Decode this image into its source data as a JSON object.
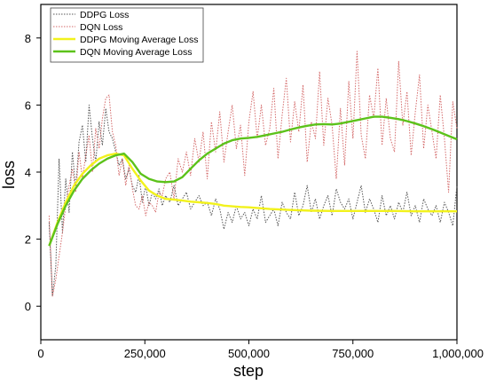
{
  "chart_data": {
    "type": "line",
    "title": "",
    "xlabel": "step",
    "ylabel": "loss",
    "xlim": [
      0,
      1000000
    ],
    "ylim": [
      -1,
      9
    ],
    "xticks": [
      0,
      250000,
      500000,
      750000,
      1000000
    ],
    "xtick_labels": [
      "0",
      "250,000",
      "500,000",
      "750,000",
      "1,000,000"
    ],
    "yticks": [
      0,
      2,
      4,
      6,
      8
    ],
    "ytick_labels": [
      "0",
      "2",
      "4",
      "6",
      "8"
    ],
    "grid": false,
    "legend_position": "top-left",
    "series": [
      {
        "name": "DDPG Loss",
        "color": "#555555",
        "style": "dotted",
        "x": [
          20000,
          28000,
          36000,
          44000,
          52000,
          60000,
          68000,
          76000,
          84000,
          92000,
          100000,
          108000,
          116000,
          124000,
          132000,
          140000,
          148000,
          156000,
          164000,
          172000,
          180000,
          188000,
          196000,
          204000,
          212000,
          220000,
          228000,
          236000,
          244000,
          252000,
          260000,
          268000,
          276000,
          284000,
          292000,
          300000,
          310000,
          320000,
          330000,
          340000,
          350000,
          360000,
          370000,
          380000,
          390000,
          400000,
          410000,
          420000,
          430000,
          440000,
          450000,
          460000,
          470000,
          480000,
          490000,
          500000,
          510000,
          520000,
          530000,
          540000,
          550000,
          560000,
          570000,
          580000,
          590000,
          600000,
          610000,
          620000,
          630000,
          640000,
          650000,
          660000,
          670000,
          680000,
          690000,
          700000,
          710000,
          720000,
          730000,
          740000,
          750000,
          760000,
          770000,
          780000,
          790000,
          800000,
          810000,
          820000,
          830000,
          840000,
          850000,
          860000,
          870000,
          880000,
          890000,
          900000,
          910000,
          920000,
          930000,
          940000,
          950000,
          960000,
          970000,
          980000,
          990000,
          1000000
        ],
        "y": [
          2.5,
          0.3,
          1.2,
          4.4,
          2.2,
          3.8,
          2.8,
          4.6,
          3.5,
          4.9,
          5.4,
          4.3,
          6.0,
          5.0,
          4.3,
          5.5,
          4.8,
          5.9,
          5.2,
          5.0,
          4.6,
          4.2,
          4.4,
          3.8,
          4.1,
          3.6,
          3.4,
          3.9,
          3.1,
          3.6,
          3.0,
          3.4,
          3.2,
          3.5,
          3.0,
          3.3,
          3.1,
          3.6,
          3.0,
          3.2,
          3.4,
          2.9,
          3.1,
          3.3,
          3.0,
          3.1,
          2.7,
          3.2,
          2.9,
          2.3,
          2.8,
          2.5,
          3.0,
          2.6,
          2.8,
          2.4,
          2.9,
          2.6,
          3.3,
          2.5,
          2.7,
          2.9,
          2.4,
          3.1,
          2.8,
          2.6,
          3.4,
          2.7,
          3.0,
          3.6,
          2.8,
          3.2,
          2.6,
          3.0,
          3.3,
          2.7,
          3.5,
          3.1,
          2.9,
          3.2,
          2.6,
          3.1,
          3.6,
          2.8,
          3.2,
          2.9,
          2.5,
          3.3,
          2.7,
          3.0,
          2.6,
          3.1,
          2.8,
          3.4,
          2.7,
          3.0,
          2.5,
          3.2,
          2.9,
          2.7,
          3.0,
          2.5,
          3.1,
          2.8,
          2.4,
          3.6
        ]
      },
      {
        "name": "DQN Loss",
        "color": "#d46a6a",
        "style": "dotted",
        "x": [
          20000,
          28000,
          36000,
          44000,
          52000,
          60000,
          68000,
          76000,
          84000,
          92000,
          100000,
          108000,
          116000,
          124000,
          132000,
          140000,
          148000,
          156000,
          164000,
          172000,
          180000,
          188000,
          196000,
          204000,
          212000,
          220000,
          228000,
          236000,
          244000,
          252000,
          260000,
          268000,
          276000,
          284000,
          292000,
          300000,
          310000,
          320000,
          330000,
          340000,
          350000,
          360000,
          370000,
          380000,
          390000,
          400000,
          410000,
          420000,
          430000,
          440000,
          450000,
          460000,
          470000,
          480000,
          490000,
          500000,
          510000,
          520000,
          530000,
          540000,
          550000,
          560000,
          570000,
          580000,
          590000,
          600000,
          610000,
          620000,
          630000,
          640000,
          650000,
          660000,
          670000,
          680000,
          690000,
          700000,
          710000,
          720000,
          730000,
          740000,
          750000,
          760000,
          770000,
          780000,
          790000,
          800000,
          810000,
          820000,
          830000,
          840000,
          850000,
          860000,
          870000,
          880000,
          890000,
          900000,
          910000,
          920000,
          930000,
          940000,
          950000,
          960000,
          970000,
          980000,
          990000,
          1000000
        ],
        "y": [
          2.7,
          0.3,
          0.8,
          1.5,
          2.2,
          3.0,
          3.6,
          4.1,
          3.4,
          4.6,
          3.8,
          4.5,
          5.1,
          4.0,
          5.3,
          4.7,
          5.6,
          6.2,
          6.3,
          5.2,
          4.8,
          3.9,
          4.4,
          3.6,
          4.2,
          3.5,
          3.0,
          2.9,
          3.3,
          2.7,
          3.1,
          3.0,
          2.8,
          3.4,
          3.3,
          3.8,
          4.0,
          3.2,
          4.4,
          4.0,
          4.6,
          3.9,
          5.0,
          4.3,
          5.2,
          3.8,
          5.5,
          4.6,
          5.8,
          4.3,
          5.2,
          6.0,
          4.7,
          5.4,
          3.9,
          5.5,
          6.4,
          5.0,
          6.0,
          4.8,
          5.3,
          6.5,
          4.4,
          5.7,
          6.8,
          4.9,
          6.1,
          5.2,
          6.6,
          4.3,
          5.5,
          5.0,
          7.0,
          4.8,
          6.2,
          5.4,
          3.8,
          5.9,
          4.2,
          6.7,
          5.0,
          7.6,
          5.1,
          4.4,
          6.3,
          5.6,
          7.1,
          4.8,
          6.2,
          5.0,
          4.6,
          7.3,
          5.4,
          6.4,
          4.5,
          5.8,
          6.9,
          4.7,
          6.0,
          5.2,
          4.4,
          6.3,
          5.0,
          3.4,
          6.1,
          5.3
        ]
      },
      {
        "name": "DDPG Moving Average Loss",
        "color": "#f2f21c",
        "style": "solid",
        "x": [
          20000,
          40000,
          60000,
          80000,
          100000,
          120000,
          140000,
          160000,
          180000,
          200000,
          220000,
          240000,
          260000,
          280000,
          300000,
          320000,
          340000,
          360000,
          380000,
          400000,
          420000,
          440000,
          460000,
          480000,
          500000,
          550000,
          600000,
          650000,
          700000,
          750000,
          800000,
          850000,
          900000,
          950000,
          1000000
        ],
        "y": [
          1.8,
          2.5,
          3.1,
          3.6,
          3.95,
          4.2,
          4.4,
          4.5,
          4.55,
          4.5,
          4.1,
          3.75,
          3.45,
          3.3,
          3.2,
          3.18,
          3.15,
          3.12,
          3.1,
          3.08,
          3.05,
          3.0,
          2.98,
          2.96,
          2.95,
          2.9,
          2.87,
          2.85,
          2.84,
          2.84,
          2.84,
          2.84,
          2.83,
          2.83,
          2.83
        ]
      },
      {
        "name": "DQN Moving Average Loss",
        "color": "#5cc21a",
        "style": "solid",
        "x": [
          20000,
          40000,
          60000,
          80000,
          100000,
          120000,
          140000,
          160000,
          180000,
          200000,
          220000,
          240000,
          260000,
          280000,
          300000,
          320000,
          340000,
          360000,
          380000,
          400000,
          420000,
          440000,
          460000,
          480000,
          500000,
          520000,
          540000,
          560000,
          580000,
          600000,
          620000,
          640000,
          660000,
          680000,
          700000,
          720000,
          740000,
          760000,
          780000,
          800000,
          820000,
          840000,
          860000,
          880000,
          900000,
          920000,
          940000,
          960000,
          980000,
          1000000
        ],
        "y": [
          1.8,
          2.45,
          3.0,
          3.45,
          3.8,
          4.05,
          4.25,
          4.4,
          4.5,
          4.55,
          4.3,
          3.95,
          3.8,
          3.72,
          3.7,
          3.72,
          3.85,
          4.1,
          4.35,
          4.55,
          4.7,
          4.85,
          4.95,
          5.0,
          5.02,
          5.05,
          5.1,
          5.15,
          5.2,
          5.27,
          5.33,
          5.38,
          5.42,
          5.43,
          5.42,
          5.45,
          5.5,
          5.55,
          5.6,
          5.65,
          5.65,
          5.62,
          5.58,
          5.52,
          5.45,
          5.37,
          5.28,
          5.18,
          5.08,
          4.98
        ]
      }
    ]
  }
}
